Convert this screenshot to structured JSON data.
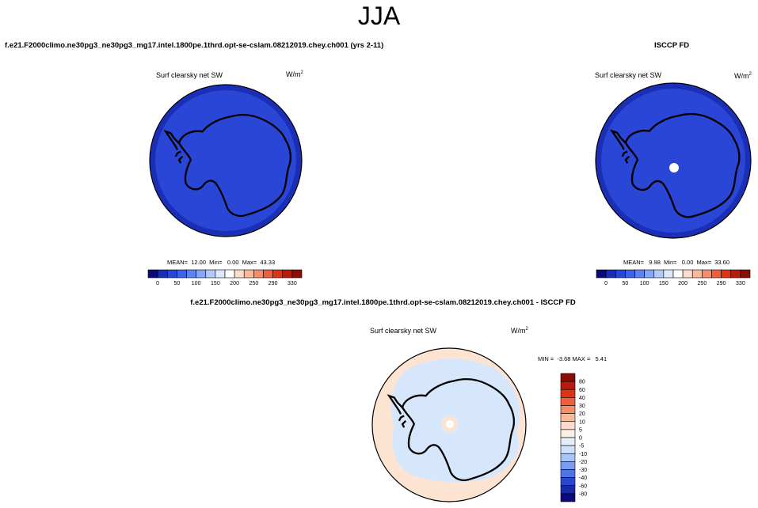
{
  "figure": {
    "season": "JJA",
    "model_case": "f.e21.F2000climo.ne30pg3_ne30pg3_mg17.intel.1800pe.1thrd.opt-se-cslam.08212019.chey.ch001 (yrs 2-11)",
    "obs_case": "ISCCP FD",
    "diff_case": "f.e21.F2000climo.ne30pg3_ne30pg3_mg17.intel.1800pe.1thrd.opt-se-cslam.08212019.chey.ch001 - ISCCP FD"
  },
  "chart_data": [
    {
      "type": "heatmap",
      "projection": "south-polar-stereographic",
      "title": "Surf clearsky net SW",
      "units_base": "W/m",
      "units_exp": "2",
      "stats_text": "MEAN=  12.00  Min=   0.00  Max=  43.33",
      "stats": {
        "mean": 12.0,
        "min": 0.0,
        "max": 43.33
      },
      "colorbar": {
        "orientation": "horizontal",
        "levels": [
          0,
          25,
          50,
          75,
          100,
          125,
          150,
          175,
          200,
          225,
          250,
          275,
          290,
          310,
          330
        ],
        "labels": [
          "0",
          "50",
          "100",
          "150",
          "200",
          "250",
          "290",
          "330"
        ],
        "colors": [
          "#0a0a7a",
          "#1a2fb5",
          "#2946d6",
          "#3f62e6",
          "#5f83f0",
          "#87a6f5",
          "#b3c9f8",
          "#dde8fb",
          "#ffffff",
          "#fcdccb",
          "#f9b99a",
          "#f58c6a",
          "#ef5e3e",
          "#de3415",
          "#b81b0b",
          "#8a0d06"
        ]
      },
      "field": {
        "ocean_color": "#2946d6",
        "continent_color": "#2946d6",
        "edge_color": "#1a2fb5",
        "has_missing_pole": false
      }
    },
    {
      "type": "heatmap",
      "projection": "south-polar-stereographic",
      "title": "Surf clearsky net SW",
      "units_base": "W/m",
      "units_exp": "2",
      "stats_text": "MEAN=   9.98  Min=   0.00  Max=  33.60",
      "stats": {
        "mean": 9.98,
        "min": 0.0,
        "max": 33.6
      },
      "colorbar": {
        "orientation": "horizontal",
        "levels": [
          0,
          25,
          50,
          75,
          100,
          125,
          150,
          175,
          200,
          225,
          250,
          275,
          290,
          310,
          330
        ],
        "labels": [
          "0",
          "50",
          "100",
          "150",
          "200",
          "250",
          "290",
          "330"
        ],
        "colors": [
          "#0a0a7a",
          "#1a2fb5",
          "#2946d6",
          "#3f62e6",
          "#5f83f0",
          "#87a6f5",
          "#b3c9f8",
          "#dde8fb",
          "#ffffff",
          "#fcdccb",
          "#f9b99a",
          "#f58c6a",
          "#ef5e3e",
          "#de3415",
          "#b81b0b",
          "#8a0d06"
        ]
      },
      "field": {
        "ocean_color": "#2946d6",
        "continent_color": "#2946d6",
        "edge_color": "#1a2fb5",
        "has_missing_pole": true
      }
    },
    {
      "type": "heatmap",
      "projection": "south-polar-stereographic",
      "title": "Surf clearsky net SW",
      "units_base": "W/m",
      "units_exp": "2",
      "stats_text": "MIN =  -3.68 MAX =   5.41",
      "stats": {
        "min": -3.68,
        "max": 5.41
      },
      "colorbar": {
        "orientation": "vertical",
        "labels": [
          "80",
          "60",
          "40",
          "30",
          "20",
          "10",
          "5",
          "0",
          "-5",
          "-10",
          "-20",
          "-30",
          "-40",
          "-60",
          "-80"
        ],
        "colors": [
          "#8a0d06",
          "#b81b0b",
          "#de3415",
          "#ef5e3e",
          "#f58c6a",
          "#f9b99a",
          "#fcdccb",
          "#fdeee4",
          "#e4eefb",
          "#cfe0fb",
          "#a9c4f6",
          "#7c9cf0",
          "#4f74e4",
          "#2c47cf",
          "#1a2aa6",
          "#0a0a7a"
        ]
      },
      "field": {
        "ocean_color": "#fde4d2",
        "continent_color": "#d7e7fb",
        "edge_color": "#fde4d2",
        "has_missing_pole": true
      }
    }
  ]
}
